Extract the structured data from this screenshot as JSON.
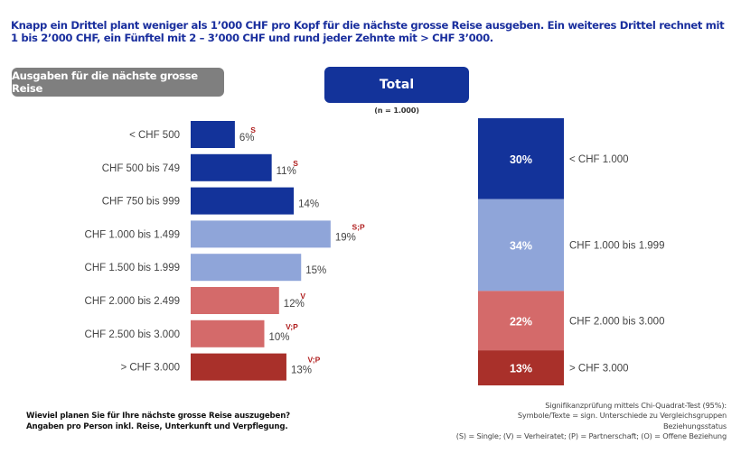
{
  "headline": {
    "line1": "Knapp ein Drittel plant weniger als 1’000 CHF pro Kopf für die nächste grosse Reise ausgeben. Ein weiteres Drittel rechnet mit",
    "line2": "1 bis 2’000 CHF, ein Fünftel mit 2 – 3’000 CHF und rund jeder Zehnte mit > CHF 3’000."
  },
  "section_label": "Ausgaben für die nächste grosse Reise",
  "total_label": "Total",
  "sample_size": "(n = 1.000)",
  "colors": {
    "dark_blue": "#13339a",
    "light_blue": "#8fa5d9",
    "light_red": "#d46a6a",
    "dark_red": "#a9302a",
    "significance": "#b01e1e"
  },
  "chart_data": [
    {
      "type": "bar",
      "orientation": "horizontal",
      "title": "Ausgaben für die nächste grosse Reise",
      "categories": [
        "< CHF 500",
        "CHF 500 bis 749",
        "CHF 750 bis 999",
        "CHF 1.000 bis 1.499",
        "CHF 1.500 bis 1.999",
        "CHF 2.000 bis 2.499",
        "CHF 2.500 bis 3.000",
        "> CHF 3.000"
      ],
      "values": [
        6,
        11,
        14,
        19,
        15,
        12,
        10,
        13
      ],
      "value_labels": [
        "6%",
        "11%",
        "14%",
        "19%",
        "15%",
        "12%",
        "10%",
        "13%"
      ],
      "significance": [
        "S",
        "S",
        "",
        "S;P",
        "",
        "V",
        "V;P",
        "V;P"
      ],
      "color_groups": [
        "dark_blue",
        "dark_blue",
        "dark_blue",
        "light_blue",
        "light_blue",
        "light_red",
        "light_red",
        "dark_red"
      ],
      "unit": "%",
      "xlabel": "",
      "ylabel": ""
    },
    {
      "type": "bar",
      "orientation": "stacked-vertical",
      "title": "Total",
      "subtitle": "(n = 1.000)",
      "categories": [
        "< CHF 1.000",
        "CHF 1.000 bis 1.999",
        "CHF 2.000 bis 3.000",
        "> CHF 3.000"
      ],
      "values": [
        30,
        34,
        22,
        13
      ],
      "value_labels": [
        "30%",
        "34%",
        "22%",
        "13%"
      ],
      "color_groups": [
        "dark_blue",
        "light_blue",
        "light_red",
        "dark_red"
      ],
      "unit": "%"
    }
  ],
  "question": {
    "line1": "Wieviel planen Sie für Ihre nächste grosse Reise auszugeben?",
    "line2": "Angaben pro Person inkl. Reise, Unterkunft und Verpflegung."
  },
  "footnote": {
    "line1": "Signifikanzprüfung mittels Chi-Quadrat-Test (95%):",
    "line2": "Symbole/Texte = sign. Unterschiede zu Vergleichsgruppen",
    "line3": "Beziehungsstatus",
    "line4": "(S) = Single; (V) = Verheiratet; (P) = Partnerschaft; (O) = Offene Beziehung"
  }
}
